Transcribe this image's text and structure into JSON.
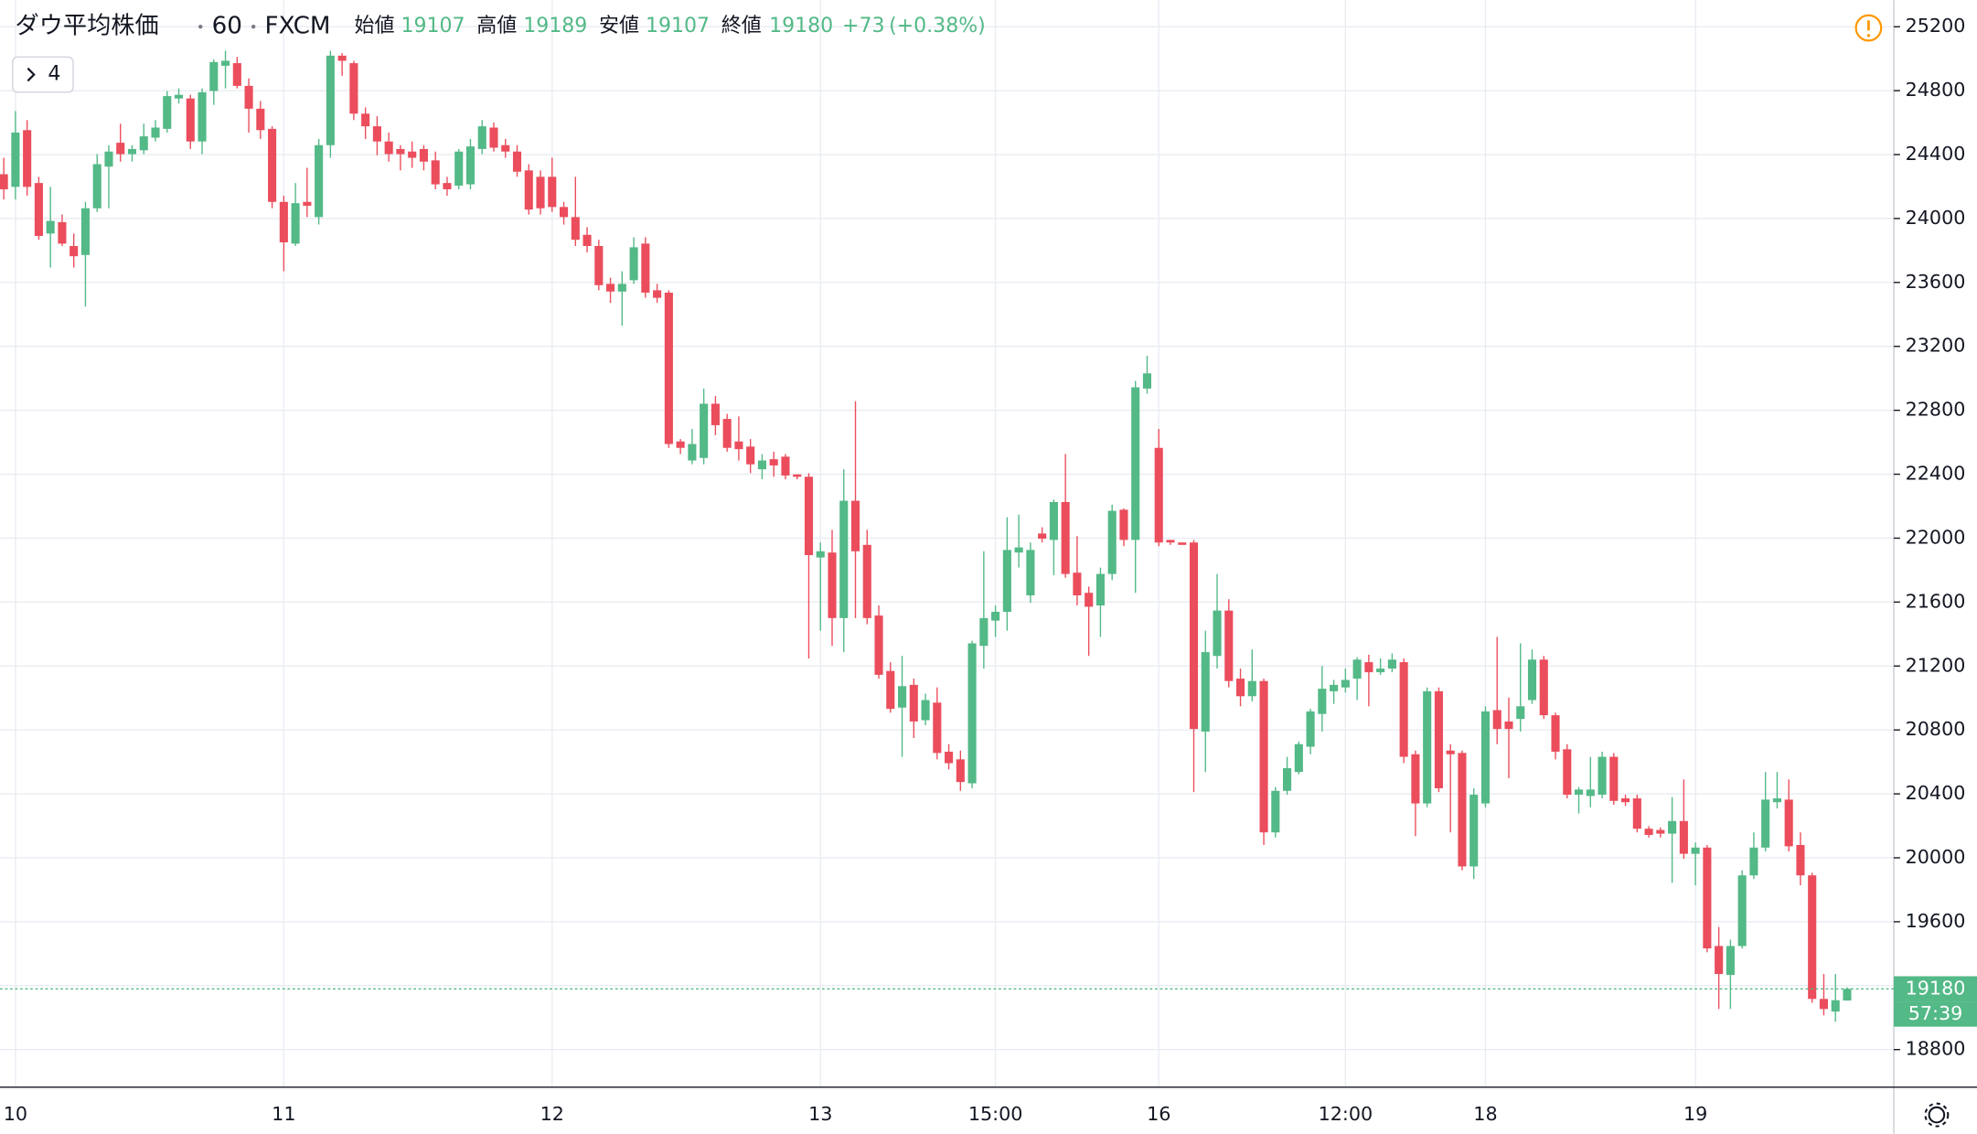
{
  "chart_data": {
    "type": "candlestick",
    "header": {
      "title": "ダウ平均株価",
      "interval": "60",
      "source": "FXCM",
      "ohlc": [
        {
          "label": "始値",
          "value": 19107
        },
        {
          "label": "高値",
          "value": 19189
        },
        {
          "label": "安値",
          "value": 19107
        },
        {
          "label": "終値",
          "value": 19180
        }
      ],
      "change": "+73",
      "change_percent": "(+0.38%)"
    },
    "indicators_toggle": "4",
    "last_price": 19180,
    "countdown": "57:39",
    "up_color": "#53b987",
    "down_color": "#eb4d5c",
    "ylim": [
      18565,
      25366
    ],
    "yticks": [
      18800,
      19200,
      19600,
      20000,
      20400,
      20800,
      21200,
      21600,
      22000,
      22400,
      22800,
      23200,
      23600,
      24000,
      24400,
      24800,
      25200
    ],
    "grid": true,
    "categories": [
      null,
      "10",
      null,
      null,
      null,
      null,
      null,
      null,
      null,
      null,
      null,
      null,
      null,
      null,
      null,
      null,
      null,
      null,
      null,
      null,
      null,
      null,
      null,
      null,
      "11",
      null,
      null,
      null,
      null,
      null,
      null,
      null,
      null,
      null,
      null,
      null,
      null,
      null,
      null,
      null,
      null,
      null,
      null,
      null,
      null,
      null,
      null,
      "12",
      null,
      null,
      null,
      null,
      null,
      null,
      null,
      null,
      null,
      null,
      null,
      null,
      null,
      null,
      null,
      null,
      null,
      null,
      null,
      null,
      null,
      null,
      "13",
      null,
      null,
      null,
      null,
      null,
      null,
      null,
      null,
      null,
      null,
      null,
      null,
      null,
      null,
      "15:00",
      null,
      null,
      null,
      null,
      null,
      null,
      null,
      null,
      null,
      null,
      null,
      null,
      null,
      "16",
      null,
      null,
      null,
      null,
      null,
      null,
      null,
      null,
      null,
      null,
      null,
      null,
      null,
      null,
      null,
      "12:00",
      null,
      null,
      null,
      null,
      null,
      null,
      null,
      null,
      null,
      null,
      null,
      "18",
      null,
      null,
      null,
      null,
      null,
      null,
      null,
      null,
      null,
      null,
      null,
      null,
      null,
      null,
      null,
      null,
      null,
      "19",
      null,
      null,
      null,
      null,
      null,
      null,
      null,
      null,
      null,
      null,
      null,
      null,
      null
    ],
    "open": [
      24277,
      24198,
      24553,
      24222,
      23906,
      23977,
      23828,
      23772,
      24064,
      24325,
      24474,
      24403,
      24427,
      24506,
      24561,
      24751,
      24751,
      24482,
      24798,
      24956,
      24972,
      24830,
      24687,
      24561,
      24104,
      23843,
      24104,
      24009,
      24459,
      25019,
      24972,
      24656,
      24577,
      24482,
      24435,
      24419,
      24435,
      24364,
      24222,
      24206,
      24214,
      24435,
      24569,
      24459,
      24419,
      24301,
      24261,
      24261,
      24072,
      24009,
      23898,
      23828,
      23591,
      23543,
      23614,
      23843,
      23551,
      23536,
      22605,
      22486,
      22502,
      22841,
      22746,
      22605,
      22573,
      22431,
      22494,
      22510,
      22399,
      22384,
      21879,
      21910,
      21500,
      22234,
      21958,
      21516,
      21169,
      20940,
      21082,
      20861,
      20971,
      20664,
      20616,
      20466,
      21326,
      21484,
      21539,
      21910,
      21642,
      22029,
      21989,
      22226,
      21784,
      21658,
      21579,
      21776,
      22178,
      21989,
      22936,
      22565,
      21989,
      21973,
      21973,
      20790,
      21263,
      21547,
      21121,
      21011,
      21106,
      20159,
      20419,
      20537,
      20695,
      20900,
      21042,
      21066,
      21121,
      21224,
      21161,
      21184,
      21224,
      20648,
      20340,
      21042,
      20671,
      20656,
      19946,
      20340,
      20924,
      20853,
      20869,
      20987,
      21240,
      20892,
      20679,
      20395,
      20387,
      20395,
      20632,
      20372,
      20372,
      20182,
      20174,
      20151,
      20230,
      20025,
      20064,
      19448,
      19267,
      19448,
      19890,
      20064,
      20348,
      20364,
      20080,
      19890,
      19117,
      19038,
      19107
    ],
    "high": [
      24380,
      24672,
      24616,
      24261,
      24198,
      24025,
      23906,
      24104,
      24403,
      24459,
      24593,
      24459,
      24593,
      24616,
      24798,
      24814,
      24774,
      24814,
      24995,
      25050,
      25011,
      24877,
      24735,
      24577,
      24143,
      24222,
      24317,
      24498,
      25050,
      25035,
      24987,
      24695,
      24640,
      24538,
      24459,
      24482,
      24459,
      24419,
      24261,
      24435,
      24498,
      24616,
      24601,
      24498,
      24459,
      24340,
      24301,
      24380,
      24104,
      24261,
      23946,
      23867,
      23630,
      23670,
      23883,
      23883,
      23591,
      23551,
      22620,
      22683,
      22936,
      22889,
      22778,
      22762,
      22620,
      22526,
      22541,
      22526,
      22399,
      22407,
      21973,
      22052,
      22431,
      22857,
      22052,
      21579,
      21224,
      21263,
      21121,
      21027,
      21066,
      20711,
      20671,
      21358,
      21918,
      21579,
      22131,
      22147,
      21973,
      22068,
      22242,
      22526,
      22013,
      21697,
      21816,
      22210,
      22186,
      22983,
      23141,
      22683,
      21989,
      21973,
      21989,
      21421,
      21776,
      21618,
      21184,
      21303,
      21121,
      20443,
      20632,
      20727,
      20932,
      21200,
      21113,
      21184,
      21255,
      21271,
      21247,
      21279,
      21247,
      20671,
      21066,
      21066,
      20711,
      20671,
      20435,
      20948,
      21382,
      21003,
      21342,
      21303,
      21263,
      20908,
      20711,
      20443,
      20632,
      20664,
      20656,
      20395,
      20395,
      20198,
      20190,
      20380,
      20490,
      20096,
      20080,
      19567,
      19488,
      19922,
      20159,
      20537,
      20537,
      20490,
      20159,
      19906,
      19273,
      19273,
      19189
    ],
    "low": [
      24119,
      24119,
      24143,
      23867,
      23693,
      23828,
      23693,
      23449,
      24041,
      24064,
      24356,
      24356,
      24403,
      24482,
      24538,
      24719,
      24435,
      24403,
      24711,
      24814,
      24814,
      24538,
      24498,
      24064,
      23670,
      23828,
      24009,
      23962,
      24380,
      24893,
      24616,
      24498,
      24396,
      24356,
      24301,
      24317,
      24301,
      24183,
      24143,
      24183,
      24183,
      24403,
      24419,
      24380,
      24261,
      24025,
      24025,
      24041,
      23962,
      23828,
      23788,
      23551,
      23472,
      23330,
      23591,
      23504,
      23472,
      22565,
      22526,
      22462,
      22462,
      22644,
      22541,
      22486,
      22407,
      22368,
      22384,
      22368,
      22368,
      21247,
      21421,
      21326,
      21287,
      21500,
      21461,
      21121,
      20908,
      20632,
      20750,
      20829,
      20616,
      20553,
      20419,
      20435,
      21184,
      21382,
      21421,
      21816,
      21595,
      21973,
      21768,
      21752,
      21579,
      21263,
      21382,
      21737,
      21950,
      21658,
      22904,
      21950,
      21958,
      21958,
      20411,
      20537,
      21184,
      21066,
      20948,
      20979,
      20080,
      20127,
      20395,
      20522,
      20648,
      20790,
      20963,
      21034,
      20987,
      20948,
      21145,
      21161,
      20592,
      20135,
      20316,
      20411,
      20159,
      19922,
      19867,
      20316,
      20711,
      20498,
      20790,
      20963,
      20869,
      20616,
      20372,
      20277,
      20316,
      20372,
      20332,
      20324,
      20159,
      20127,
      20127,
      19843,
      19993,
      19828,
      19409,
      19054,
      19054,
      19433,
      19867,
      20040,
      20309,
      20040,
      19828,
      19093,
      19014,
      18975,
      19107
    ],
    "close": [
      24183,
      24538,
      24198,
      23891,
      23985,
      23843,
      23764,
      24064,
      24340,
      24419,
      24403,
      24435,
      24514,
      24569,
      24766,
      24774,
      24482,
      24790,
      24979,
      24987,
      24830,
      24687,
      24553,
      24104,
      23851,
      24096,
      24080,
      24459,
      25019,
      24987,
      24656,
      24577,
      24482,
      24403,
      24403,
      24380,
      24356,
      24214,
      24183,
      24419,
      24451,
      24577,
      24443,
      24419,
      24293,
      24056,
      24064,
      24072,
      24009,
      23867,
      23828,
      23583,
      23543,
      23591,
      23820,
      23536,
      23504,
      22589,
      22565,
      22589,
      22841,
      22707,
      22565,
      22557,
      22462,
      22486,
      22455,
      22392,
      22384,
      21894,
      21918,
      21500,
      22234,
      21918,
      21500,
      21145,
      20932,
      21074,
      20853,
      20987,
      20656,
      20592,
      20474,
      21342,
      21500,
      21539,
      21926,
      21942,
      21926,
      21997,
      22226,
      21776,
      21642,
      21571,
      21776,
      22171,
      21989,
      22944,
      23031,
      21973,
      21973,
      21958,
      20806,
      21287,
      21547,
      21106,
      21011,
      21106,
      20159,
      20419,
      20561,
      20711,
      20916,
      21058,
      21082,
      21113,
      21240,
      21161,
      21184,
      21240,
      20632,
      20340,
      21042,
      20435,
      20648,
      19946,
      20395,
      20916,
      20806,
      20806,
      20948,
      21240,
      20892,
      20664,
      20395,
      20427,
      20427,
      20632,
      20356,
      20348,
      20182,
      20143,
      20151,
      20230,
      20025,
      20064,
      19433,
      19273,
      19448,
      19890,
      20064,
      20364,
      20372,
      20072,
      19890,
      19117,
      19054,
      19109,
      19180
    ]
  }
}
